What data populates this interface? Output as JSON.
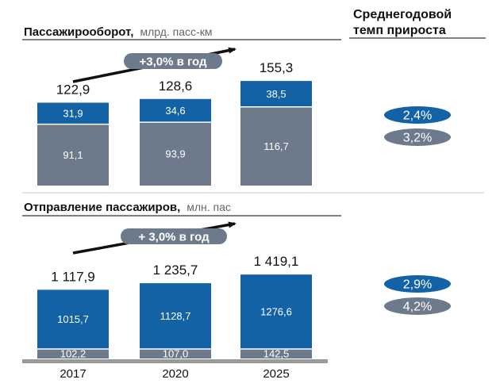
{
  "colors": {
    "blue": "#1462a6",
    "gray": "#6d7a8c",
    "text": "#111111",
    "muted": "#666666",
    "rule": "#555555",
    "separator": "#c8c8c8",
    "arrow": "#111111"
  },
  "header_right": {
    "line1": "Среднегодовой",
    "line2": "темп прироста"
  },
  "chart_data": [
    {
      "type": "bar",
      "stacked": true,
      "title": "Пассажирооборот,",
      "unit": "млрд. пасс-км",
      "categories": [
        "2017",
        "2020",
        "2025"
      ],
      "series": [
        {
          "values": [
            91.1,
            93.9,
            116.7
          ],
          "labels": [
            "91,1",
            "93,9",
            "116,7"
          ],
          "color": "#6d7a8c"
        },
        {
          "values": [
            31.9,
            34.6,
            38.5
          ],
          "labels": [
            "31,9",
            "34,6",
            "38,5"
          ],
          "color": "#1462a6"
        }
      ],
      "totals": [
        "122,9",
        "128,6",
        "155,3"
      ],
      "growth_arrow": "+3,0% в год",
      "cagr": [
        {
          "label": "2,4%",
          "color": "#1462a6"
        },
        {
          "label": "3,2%",
          "color": "#6d7a8c"
        }
      ]
    },
    {
      "type": "bar",
      "stacked": true,
      "title": "Отправление пассажиров,",
      "unit": "млн. пас",
      "categories": [
        "2017",
        "2020",
        "2025"
      ],
      "series": [
        {
          "values": [
            102.2,
            107.0,
            142.5
          ],
          "labels": [
            "102,2",
            "107,0",
            "142,5"
          ],
          "color": "#6d7a8c"
        },
        {
          "values": [
            1015.7,
            1128.7,
            1276.6
          ],
          "labels": [
            "1015,7",
            "1128,7",
            "1276,6"
          ],
          "color": "#1462a6"
        }
      ],
      "totals": [
        "1 117,9",
        "1 235,7",
        "1 419,1"
      ],
      "growth_arrow": "+ 3,0% в год",
      "cagr": [
        {
          "label": "2,9%",
          "color": "#1462a6"
        },
        {
          "label": "4,2%",
          "color": "#6d7a8c"
        }
      ]
    }
  ]
}
